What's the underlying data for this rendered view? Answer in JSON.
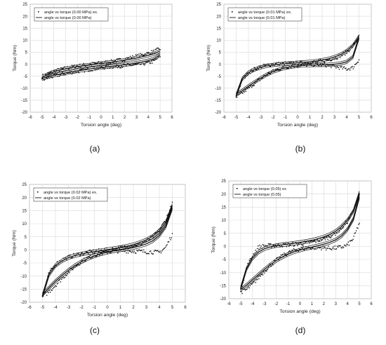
{
  "chart_data": [
    {
      "type": "scatter",
      "panel_label": "(a)",
      "xlabel": "Torsion angle (deg)",
      "ylabel": "Torque (Nm)",
      "xlim": [
        -6,
        6
      ],
      "ylim": [
        -20,
        25
      ],
      "xticks": [
        -6,
        -5,
        -4,
        -3,
        -2,
        -1,
        0,
        1,
        2,
        3,
        4,
        5,
        6
      ],
      "yticks": [
        -20,
        -15,
        -10,
        -5,
        0,
        5,
        10,
        15,
        20,
        25
      ],
      "grid": true,
      "legend_position": "top-left",
      "series": [
        {
          "name": "angle vs torque (0.00 MPa) ex.",
          "kind": "markers",
          "x": [
            -5.0,
            -4.5,
            -4.0,
            -3.5,
            -3.0,
            -2.5,
            -2.0,
            -1.5,
            -1.0,
            -0.5,
            0.0,
            0.5,
            1.0,
            1.5,
            2.0,
            2.5,
            3.0,
            3.5,
            4.0,
            4.5,
            5.0
          ],
          "y_loading": [
            -5.0,
            -4.0,
            -3.0,
            -2.3,
            -1.7,
            -1.2,
            -0.8,
            -0.4,
            -0.1,
            0.2,
            0.5,
            0.8,
            1.2,
            1.6,
            2.1,
            2.7,
            3.3,
            3.9,
            4.6,
            5.3,
            6.5
          ],
          "y_unloading": [
            -6.5,
            -5.7,
            -5.0,
            -4.4,
            -3.9,
            -3.4,
            -3.0,
            -2.6,
            -2.2,
            -1.8,
            -1.5,
            -1.2,
            -1.0,
            -0.8,
            -0.6,
            -0.4,
            -0.2,
            0.1,
            0.6,
            1.3,
            3.5
          ]
        },
        {
          "name": "angle vs torque (0.00 MPa)",
          "kind": "line",
          "x": [
            -5.0,
            -4.5,
            -4.0,
            -3.5,
            -3.0,
            -2.5,
            -2.0,
            -1.5,
            -1.0,
            -0.5,
            0.0,
            0.5,
            1.0,
            1.5,
            2.0,
            2.5,
            3.0,
            3.5,
            4.0,
            4.5,
            5.0
          ],
          "y_loading": [
            -5.5,
            -4.2,
            -3.2,
            -2.5,
            -1.9,
            -1.4,
            -1.0,
            -0.6,
            -0.3,
            0.0,
            0.3,
            0.6,
            0.9,
            1.3,
            1.7,
            2.1,
            2.6,
            3.1,
            3.7,
            4.4,
            5.5
          ],
          "y_unloading": [
            -6.0,
            -5.2,
            -4.6,
            -4.1,
            -3.6,
            -3.2,
            -2.8,
            -2.4,
            -2.0,
            -1.7,
            -1.4,
            -1.1,
            -0.8,
            -0.5,
            -0.2,
            0.1,
            0.5,
            0.9,
            1.5,
            2.3,
            4.0
          ]
        }
      ]
    },
    {
      "type": "scatter",
      "panel_label": "(b)",
      "xlabel": "Torsion angle (deg)",
      "ylabel": "Torque (Nm)",
      "xlim": [
        -6,
        6
      ],
      "ylim": [
        -20,
        25
      ],
      "xticks": [
        -6,
        -5,
        -4,
        -3,
        -2,
        -1,
        0,
        1,
        2,
        3,
        4,
        5,
        6
      ],
      "yticks": [
        -20,
        -15,
        -10,
        -5,
        0,
        5,
        10,
        15,
        20,
        25
      ],
      "grid": true,
      "legend_position": "top-left",
      "series": [
        {
          "name": "angle vs torque (0.01 MPa) ex.",
          "kind": "markers",
          "x": [
            -5.0,
            -4.5,
            -4.0,
            -3.5,
            -3.0,
            -2.5,
            -2.0,
            -1.5,
            -1.0,
            -0.5,
            0.0,
            0.5,
            1.0,
            1.5,
            2.0,
            2.5,
            3.0,
            3.5,
            4.0,
            4.5,
            5.0
          ],
          "y_loading": [
            -13.5,
            -6.5,
            -3.5,
            -2.0,
            -1.0,
            -0.4,
            0.0,
            0.2,
            0.3,
            0.4,
            0.5,
            0.6,
            0.8,
            1.0,
            1.3,
            1.8,
            2.5,
            3.5,
            5.0,
            7.5,
            11.5
          ],
          "y_unloading": [
            -14.0,
            -12.0,
            -10.0,
            -8.0,
            -6.0,
            -4.3,
            -3.0,
            -2.0,
            -1.3,
            -0.8,
            -0.5,
            -0.3,
            -0.2,
            -0.2,
            -0.3,
            -0.5,
            -1.0,
            -1.5,
            -2.0,
            -1.5,
            2.0
          ]
        },
        {
          "name": "angle vs torque (0.01 MPa)",
          "kind": "line",
          "x": [
            -5.0,
            -4.5,
            -4.0,
            -3.5,
            -3.0,
            -2.5,
            -2.0,
            -1.5,
            -1.0,
            -0.5,
            0.0,
            0.5,
            1.0,
            1.5,
            2.0,
            2.5,
            3.0,
            3.5,
            4.0,
            4.5,
            5.0
          ],
          "y_loading": [
            -13.0,
            -6.0,
            -3.5,
            -2.2,
            -1.3,
            -0.7,
            -0.3,
            0.0,
            0.2,
            0.4,
            0.6,
            0.8,
            1.0,
            1.3,
            1.7,
            2.2,
            3.0,
            4.0,
            5.5,
            7.8,
            11.5
          ],
          "y_unloading": [
            -12.5,
            -11.0,
            -9.2,
            -7.5,
            -5.8,
            -4.3,
            -3.1,
            -2.2,
            -1.5,
            -1.0,
            -0.7,
            -0.5,
            -0.4,
            -0.3,
            -0.3,
            -0.2,
            0.0,
            0.3,
            1.0,
            3.0,
            11.0
          ]
        }
      ]
    },
    {
      "type": "scatter",
      "panel_label": "(c)",
      "xlabel": "Torsion angle (deg)",
      "ylabel": "Torque (Nm)",
      "xlim": [
        -6,
        6
      ],
      "ylim": [
        -20,
        25
      ],
      "xticks": [
        -6,
        -5,
        -4,
        -3,
        -2,
        -1,
        0,
        1,
        2,
        3,
        4,
        5,
        6
      ],
      "yticks": [
        -20,
        -15,
        -10,
        -5,
        0,
        5,
        10,
        15,
        20,
        25
      ],
      "grid": true,
      "legend_position": "top-left",
      "series": [
        {
          "name": "angle vs torque (0.02 MPa) ex.",
          "kind": "markers",
          "x": [
            -5.0,
            -4.5,
            -4.0,
            -3.5,
            -3.0,
            -2.5,
            -2.0,
            -1.5,
            -1.0,
            -0.5,
            0.0,
            0.5,
            1.0,
            1.5,
            2.0,
            2.5,
            3.0,
            3.5,
            4.0,
            4.5,
            5.0
          ],
          "y_loading": [
            -17.5,
            -9.0,
            -5.5,
            -3.8,
            -2.8,
            -2.0,
            -1.4,
            -1.0,
            -0.6,
            -0.3,
            0.0,
            0.3,
            0.7,
            1.1,
            1.6,
            2.3,
            3.3,
            5.0,
            7.5,
            11.5,
            17.5
          ],
          "y_unloading": [
            -18.0,
            -16.0,
            -13.5,
            -11.0,
            -8.5,
            -6.3,
            -4.5,
            -3.0,
            -2.0,
            -1.3,
            -0.8,
            -0.5,
            -0.4,
            -0.4,
            -0.5,
            -0.6,
            -0.7,
            -0.8,
            -1.0,
            1.0,
            6.0
          ]
        },
        {
          "name": "angle vs torque (0.02 MPa)",
          "kind": "line",
          "x": [
            -5.0,
            -4.5,
            -4.0,
            -3.5,
            -3.0,
            -2.5,
            -2.0,
            -1.5,
            -1.0,
            -0.5,
            0.0,
            0.5,
            1.0,
            1.5,
            2.0,
            2.5,
            3.0,
            3.5,
            4.0,
            4.5,
            5.0
          ],
          "y_loading": [
            -17.5,
            -9.5,
            -6.0,
            -4.2,
            -3.0,
            -2.2,
            -1.6,
            -1.1,
            -0.7,
            -0.3,
            0.1,
            0.5,
            0.9,
            1.4,
            2.0,
            2.8,
            3.8,
            5.2,
            7.3,
            10.5,
            17.0
          ],
          "y_unloading": [
            -17.0,
            -14.5,
            -12.0,
            -9.8,
            -7.8,
            -6.0,
            -4.5,
            -3.3,
            -2.3,
            -1.5,
            -0.9,
            -0.4,
            0.0,
            0.4,
            0.9,
            1.5,
            2.3,
            3.5,
            5.5,
            9.0,
            16.0
          ]
        }
      ]
    },
    {
      "type": "scatter",
      "panel_label": "(d)",
      "xlabel": "Torsion angle (deg)",
      "ylabel": "Torque (Nm)",
      "xlim": [
        -6,
        6
      ],
      "ylim": [
        -20,
        25
      ],
      "xticks": [
        -6,
        -5,
        -4,
        -3,
        -2,
        -1,
        0,
        1,
        2,
        3,
        4,
        5,
        6
      ],
      "yticks": [
        -20,
        -15,
        -10,
        -5,
        0,
        5,
        10,
        15,
        20,
        25
      ],
      "grid": true,
      "legend_position": "top-left",
      "series": [
        {
          "name": "angle vs torque (0.05) ex",
          "kind": "markers",
          "x": [
            -5.0,
            -4.5,
            -4.0,
            -3.5,
            -3.0,
            -2.5,
            -2.0,
            -1.5,
            -1.0,
            -0.5,
            0.0,
            0.5,
            1.0,
            1.5,
            2.0,
            2.5,
            3.0,
            3.5,
            4.0,
            4.5,
            5.0
          ],
          "y_loading": [
            -17.0,
            -8.0,
            -3.5,
            -0.3,
            0.2,
            0.3,
            0.4,
            0.5,
            0.6,
            0.8,
            1.0,
            1.3,
            1.7,
            2.2,
            2.9,
            3.8,
            5.0,
            7.0,
            9.5,
            13.5,
            20.0
          ],
          "y_unloading": [
            -17.5,
            -16.5,
            -14.5,
            -12.0,
            -9.5,
            -7.2,
            -5.3,
            -3.7,
            -2.5,
            -1.6,
            -1.0,
            -0.6,
            -0.5,
            -0.5,
            -0.6,
            -0.7,
            -0.6,
            -0.3,
            0.5,
            3.0,
            9.0
          ]
        },
        {
          "name": "angle vs torque (0.05)",
          "kind": "line",
          "x": [
            -5.0,
            -4.5,
            -4.0,
            -3.5,
            -3.0,
            -2.5,
            -2.0,
            -1.5,
            -1.0,
            -0.5,
            0.0,
            0.5,
            1.0,
            1.5,
            2.0,
            2.5,
            3.0,
            3.5,
            4.0,
            4.5,
            5.0
          ],
          "y_loading": [
            -16.0,
            -8.5,
            -4.5,
            -2.2,
            -0.9,
            -0.2,
            0.3,
            0.6,
            0.9,
            1.2,
            1.5,
            1.9,
            2.3,
            2.9,
            3.6,
            4.5,
            5.8,
            7.6,
            10.0,
            13.5,
            20.5
          ],
          "y_unloading": [
            -16.5,
            -14.8,
            -12.8,
            -10.8,
            -8.8,
            -7.0,
            -5.4,
            -4.1,
            -3.0,
            -2.1,
            -1.4,
            -0.8,
            -0.3,
            0.2,
            0.8,
            1.5,
            2.5,
            4.0,
            6.5,
            10.5,
            19.0
          ]
        }
      ]
    }
  ]
}
